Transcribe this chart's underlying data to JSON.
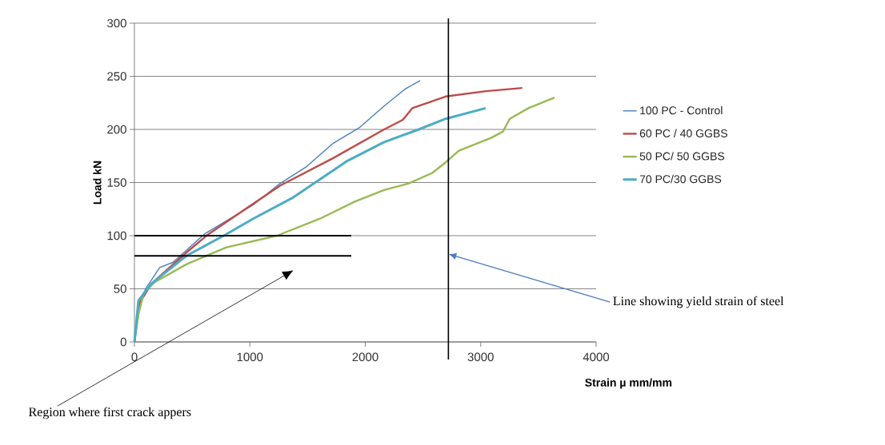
{
  "chart_data": {
    "type": "line",
    "xlabel": "Strain µ mm/mm",
    "ylabel": "Load kN",
    "xlim": [
      0,
      4000
    ],
    "ylim": [
      0,
      300
    ],
    "xticks": [
      0,
      1000,
      2000,
      3000,
      4000
    ],
    "yticks": [
      0,
      50,
      100,
      150,
      200,
      250,
      300
    ],
    "grid": "y",
    "legend": "right",
    "line_style": "solid",
    "marker": "none",
    "series": [
      {
        "name": "100 PC - Control",
        "color": "#4a7ebb",
        "x": [
          0,
          33,
          57,
          103,
          219,
          335,
          612,
          1029,
          1260,
          1491,
          1722,
          1953,
          2163,
          2345,
          2475
        ],
        "values": [
          0,
          29,
          41,
          51,
          70,
          75,
          102,
          129,
          149,
          165,
          187,
          202,
          222,
          238,
          246
        ]
      },
      {
        "name": "60 PC / 40 GGBS",
        "color": "#be4b48",
        "x": [
          0,
          40,
          149,
          449,
          635,
          1029,
          1260,
          1722,
          2163,
          2325,
          2407,
          2696,
          3043,
          3360
        ],
        "values": [
          0,
          36,
          55,
          84,
          101,
          130,
          147,
          173,
          200,
          209,
          220,
          231,
          236,
          239
        ]
      },
      {
        "name": "50 PC/ 50 GGBS",
        "color": "#98b954",
        "x": [
          0,
          35,
          80,
          172,
          449,
          797,
          1235,
          1607,
          1908,
          2163,
          2371,
          2580,
          2696,
          2811,
          3089,
          3193,
          3251,
          3413,
          3640
        ],
        "values": [
          0,
          26,
          46,
          56,
          73,
          89,
          100,
          116,
          132,
          143,
          149,
          159,
          169,
          180,
          192,
          198,
          210,
          220,
          230
        ]
      },
      {
        "name": "70 PC/30 GGBS",
        "color": "#4bacc6",
        "x": [
          0,
          35,
          149,
          449,
          774,
          1029,
          1376,
          1838,
          2163,
          2463,
          2696,
          3043
        ],
        "values": [
          0,
          39,
          55,
          81,
          100,
          116,
          136,
          170,
          188,
          200,
          210,
          220
        ]
      }
    ],
    "ref_lines": [
      {
        "axis": "y",
        "value": 100,
        "color": "#000000",
        "line_style": "solid"
      },
      {
        "axis": "y",
        "value": 81,
        "color": "#000000",
        "line_style": "solid"
      },
      {
        "axis": "x",
        "value": 2720,
        "color": "#000000",
        "line_style": "solid",
        "label": "Line showing yield strain of steel"
      }
    ],
    "annotations": [
      "Region where first crack appers"
    ]
  }
}
